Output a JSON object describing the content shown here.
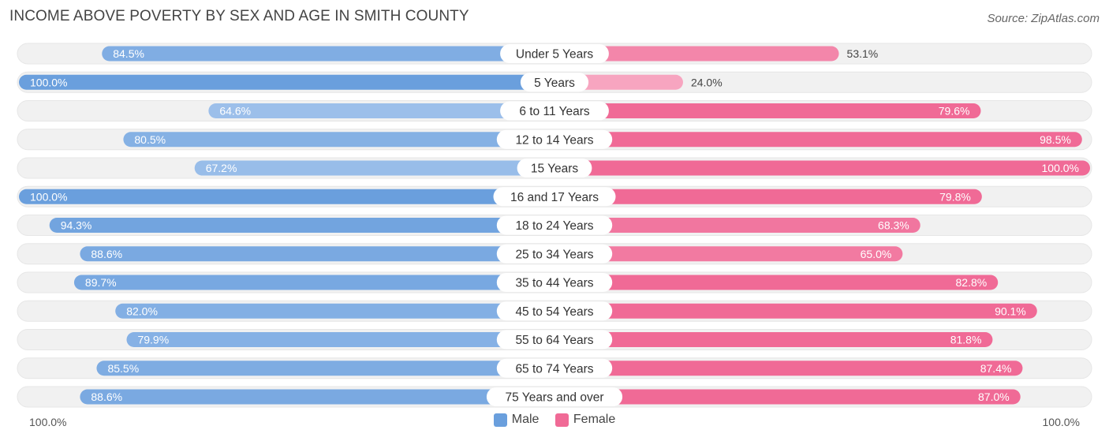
{
  "header": {
    "title": "INCOME ABOVE POVERTY BY SEX AND AGE IN SMITH COUNTY",
    "source": "Source: ZipAtlas.com"
  },
  "colors": {
    "male_dark": "#6a9fdd",
    "male_light": "#a9c8ee",
    "female_dark": "#f06a96",
    "female_light": "#f7a9c3",
    "track": "#f1f1f1"
  },
  "chart_data": {
    "type": "bar",
    "title": "INCOME ABOVE POVERTY BY SEX AND AGE IN SMITH COUNTY",
    "orientation": "horizontal-diverging",
    "categories": [
      "Under 5 Years",
      "5 Years",
      "6 to 11 Years",
      "12 to 14 Years",
      "15 Years",
      "16 and 17 Years",
      "18 to 24 Years",
      "25 to 34 Years",
      "35 to 44 Years",
      "45 to 54 Years",
      "55 to 64 Years",
      "65 to 74 Years",
      "75 Years and over"
    ],
    "series": [
      {
        "name": "Male",
        "values": [
          84.5,
          100.0,
          64.6,
          80.5,
          67.2,
          100.0,
          94.3,
          88.6,
          89.7,
          82.0,
          79.9,
          85.5,
          88.6
        ],
        "labels": [
          "84.5%",
          "100.0%",
          "64.6%",
          "80.5%",
          "67.2%",
          "100.0%",
          "94.3%",
          "88.6%",
          "89.7%",
          "82.0%",
          "79.9%",
          "85.5%",
          "88.6%"
        ]
      },
      {
        "name": "Female",
        "values": [
          53.1,
          24.0,
          79.6,
          98.5,
          100.0,
          79.8,
          68.3,
          65.0,
          82.8,
          90.1,
          81.8,
          87.4,
          87.0
        ],
        "labels": [
          "53.1%",
          "24.0%",
          "79.6%",
          "98.5%",
          "100.0%",
          "79.8%",
          "68.3%",
          "65.0%",
          "82.8%",
          "90.1%",
          "81.8%",
          "87.4%",
          "87.0%"
        ]
      }
    ],
    "xlim": [
      0,
      100
    ],
    "axis_left_label": "100.0%",
    "axis_right_label": "100.0%",
    "legend": [
      "Male",
      "Female"
    ],
    "legend_position": "bottom-center"
  }
}
